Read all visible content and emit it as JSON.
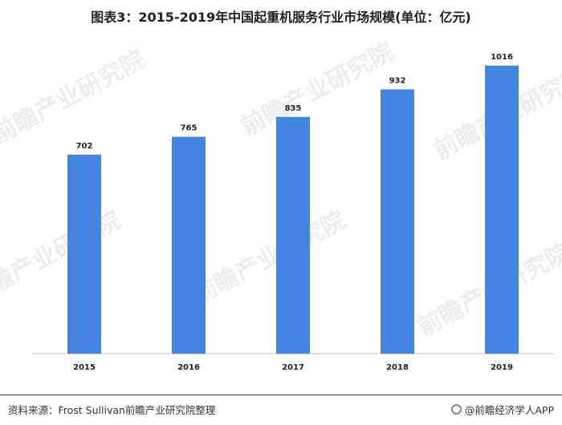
{
  "title": "图表3：2015-2019年中国起重机服务行业市场规模(单位：亿元)",
  "chart_data": {
    "type": "bar",
    "title": "图表3：2015-2019年中国起重机服务行业市场规模(单位：亿元)",
    "categories": [
      "2015",
      "2016",
      "2017",
      "2018",
      "2019"
    ],
    "values": [
      702,
      765,
      835,
      932,
      1016
    ],
    "ylim": [
      0,
      1120
    ],
    "grid": false,
    "legend": "none",
    "bar_color": "#4385e0"
  },
  "watermark": "前瞻产业研究院",
  "footer": {
    "source": "资料来源：Frost Sullivan前瞻产业研究院整理",
    "brand": "@前瞻经济学人APP"
  }
}
